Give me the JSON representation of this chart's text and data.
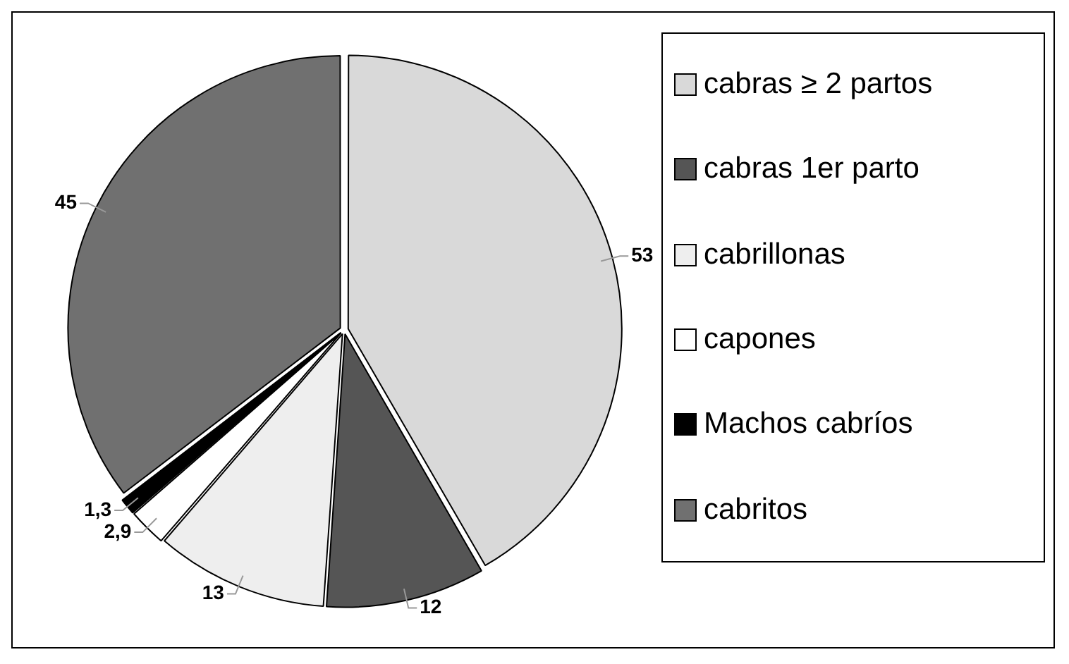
{
  "chart_data": {
    "type": "pie",
    "categories": [
      "cabras ≥ 2 partos",
      "cabras 1er parto",
      "cabrillonas",
      "capones",
      "Machos cabríos",
      "cabritos"
    ],
    "values": [
      53,
      12,
      13,
      2.9,
      1.3,
      45
    ],
    "value_labels": [
      "53",
      "12",
      "13",
      "2,9",
      "1,3",
      "45"
    ],
    "colors": [
      "#d9d9d9",
      "#555555",
      "#eeeeee",
      "#ffffff",
      "#000000",
      "#707070"
    ],
    "legend": "right"
  }
}
